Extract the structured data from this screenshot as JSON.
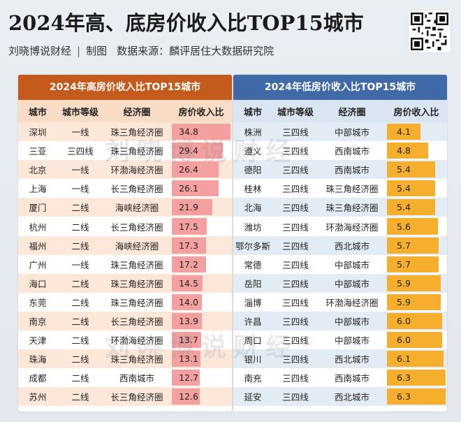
{
  "title": "2024年高、底房价收入比TOP15城市",
  "subtitle": {
    "author": "刘晓博说财经",
    "tag": "制图",
    "source": "数据来源：麟评居住大数据研究院"
  },
  "watermark": "刘晓博说财经",
  "colors": {
    "high_header": "#c45a1c",
    "low_header": "#3f6aa7",
    "high_bar": "#f4a0a0",
    "low_bar": "#f6ae2d"
  },
  "chart_data": [
    {
      "type": "table",
      "title": "2024年高房价收入比TOP15城市",
      "columns": [
        "城市",
        "城市等级",
        "经济圈",
        "房价收入比"
      ],
      "rows": [
        [
          "深圳",
          "一线",
          "珠三角经济圈",
          34.8
        ],
        [
          "三亚",
          "三四线",
          "珠三角经济圈",
          29.4
        ],
        [
          "北京",
          "一线",
          "环渤海经济圈",
          26.4
        ],
        [
          "上海",
          "一线",
          "长三角经济圈",
          26.1
        ],
        [
          "厦门",
          "二线",
          "海峡经济圈",
          21.9
        ],
        [
          "杭州",
          "二线",
          "长三角经济圈",
          17.5
        ],
        [
          "福州",
          "二线",
          "海峡经济圈",
          17.3
        ],
        [
          "广州",
          "一线",
          "珠三角经济圈",
          17.2
        ],
        [
          "海口",
          "二线",
          "珠三角经济圈",
          14.5
        ],
        [
          "东莞",
          "二线",
          "珠三角经济圈",
          14.0
        ],
        [
          "南京",
          "二线",
          "长三角经济圈",
          13.9
        ],
        [
          "天津",
          "二线",
          "环渤海经济圈",
          13.7
        ],
        [
          "珠海",
          "二线",
          "珠三角经济圈",
          13.1
        ],
        [
          "成都",
          "二线",
          "西南城市",
          12.7
        ],
        [
          "苏州",
          "二线",
          "长三角经济圈",
          12.6
        ]
      ]
    },
    {
      "type": "table",
      "title": "2024年低房价收入比TOP15城市",
      "columns": [
        "城市",
        "城市等级",
        "经济圈",
        "房价收入比"
      ],
      "rows": [
        [
          "株洲",
          "三四线",
          "中部城市",
          4.1
        ],
        [
          "遵义",
          "三四线",
          "西南城市",
          4.8
        ],
        [
          "德阳",
          "三四线",
          "西南城市",
          5.4
        ],
        [
          "桂林",
          "三四线",
          "珠三角经济圈",
          5.4
        ],
        [
          "北海",
          "三四线",
          "珠三角经济圈",
          5.4
        ],
        [
          "潍坊",
          "三四线",
          "环渤海经济圈",
          5.6
        ],
        [
          "鄂尔多斯",
          "三四线",
          "西北城市",
          5.7
        ],
        [
          "常德",
          "三四线",
          "中部城市",
          5.7
        ],
        [
          "岳阳",
          "三四线",
          "中部城市",
          5.9
        ],
        [
          "淄博",
          "三四线",
          "环渤海经济圈",
          5.9
        ],
        [
          "许昌",
          "三四线",
          "中部城市",
          6.0
        ],
        [
          "周口",
          "三四线",
          "中部城市",
          6.0
        ],
        [
          "银川",
          "三四线",
          "西北城市",
          6.1
        ],
        [
          "南充",
          "三四线",
          "西南城市",
          6.3
        ],
        [
          "延安",
          "三四线",
          "西北城市",
          6.3
        ]
      ]
    }
  ]
}
